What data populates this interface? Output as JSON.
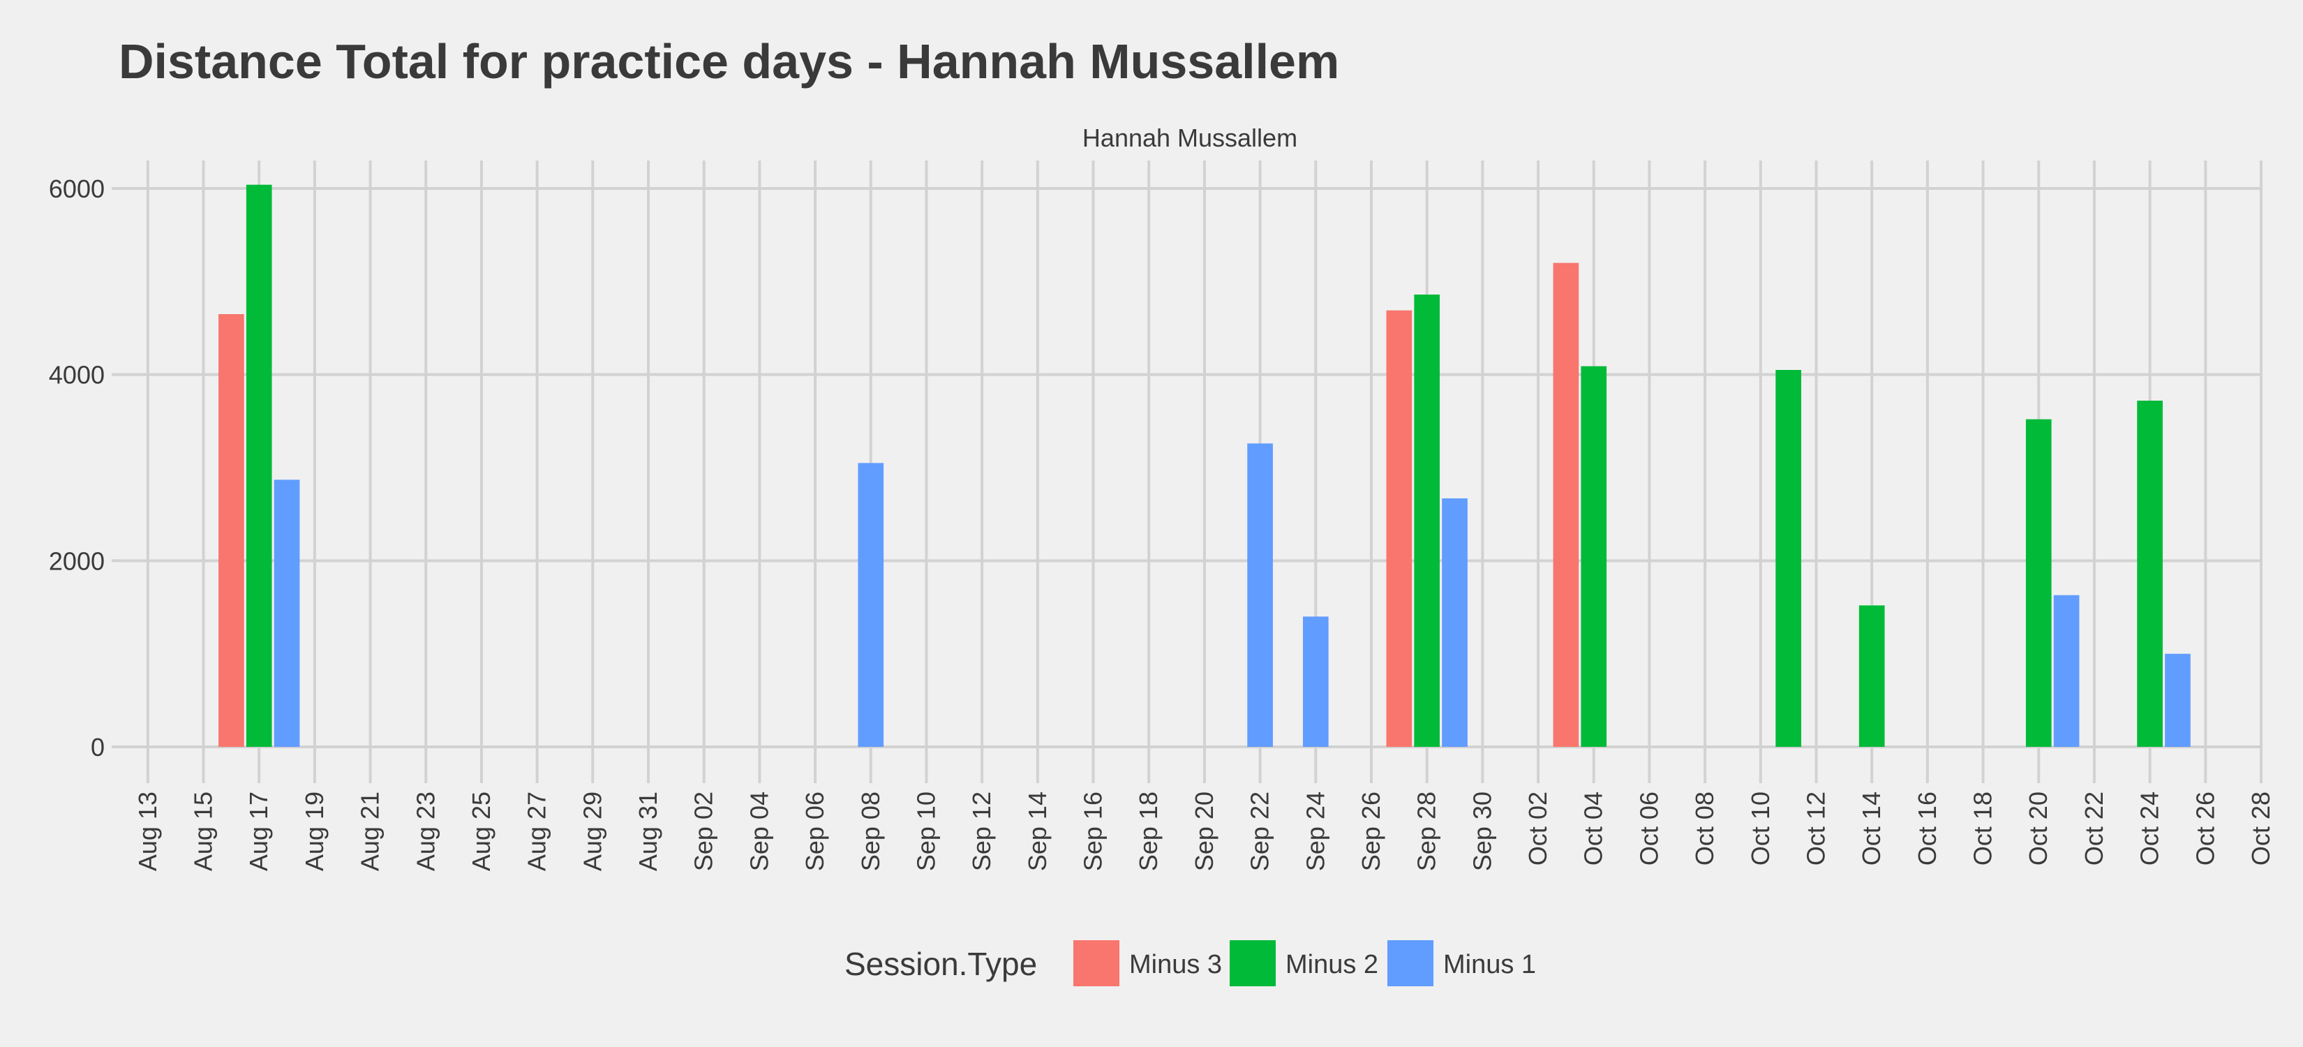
{
  "chart_data": {
    "type": "bar",
    "title": "Distance Total for practice days -  Hannah Mussallem",
    "facet_label": "Hannah Mussallem",
    "xlabel": "",
    "ylabel": "",
    "ylim": [
      -300,
      6300
    ],
    "y_ticks": [
      0,
      2000,
      4000,
      6000
    ],
    "x_range": [
      "2023-08-12",
      "2023-10-28"
    ],
    "x_ticks": [
      "2023-08-13",
      "2023-08-15",
      "2023-08-17",
      "2023-08-19",
      "2023-08-21",
      "2023-08-23",
      "2023-08-25",
      "2023-08-27",
      "2023-08-29",
      "2023-08-31",
      "2023-09-02",
      "2023-09-04",
      "2023-09-06",
      "2023-09-08",
      "2023-09-10",
      "2023-09-12",
      "2023-09-14",
      "2023-09-16",
      "2023-09-18",
      "2023-09-20",
      "2023-09-22",
      "2023-09-24",
      "2023-09-26",
      "2023-09-28",
      "2023-09-30",
      "2023-10-02",
      "2023-10-04",
      "2023-10-06",
      "2023-10-08",
      "2023-10-10",
      "2023-10-12",
      "2023-10-14",
      "2023-10-16",
      "2023-10-18",
      "2023-10-20",
      "2023-10-22",
      "2023-10-24",
      "2023-10-26",
      "2023-10-28"
    ],
    "x_tick_labels": [
      "Aug 13",
      "Aug 15",
      "Aug 17",
      "Aug 19",
      "Aug 21",
      "Aug 23",
      "Aug 25",
      "Aug 27",
      "Aug 29",
      "Aug 31",
      "Sep 02",
      "Sep 04",
      "Sep 06",
      "Sep 08",
      "Sep 10",
      "Sep 12",
      "Sep 14",
      "Sep 16",
      "Sep 18",
      "Sep 20",
      "Sep 22",
      "Sep 24",
      "Sep 26",
      "Sep 28",
      "Sep 30",
      "Oct 02",
      "Oct 04",
      "Oct 06",
      "Oct 08",
      "Oct 10",
      "Oct 12",
      "Oct 14",
      "Oct 16",
      "Oct 18",
      "Oct 20",
      "Oct 22",
      "Oct 24",
      "Oct 26",
      "Oct 28"
    ],
    "grid": true,
    "legend": {
      "title": "Session.Type",
      "position": "bottom"
    },
    "series": [
      {
        "name": "Minus 3",
        "color": "#F8766D",
        "points": [
          {
            "x": "2023-08-16",
            "y": 4650
          },
          {
            "x": "2023-09-27",
            "y": 4690
          },
          {
            "x": "2023-10-03",
            "y": 5200
          }
        ]
      },
      {
        "name": "Minus 2",
        "color": "#00BA38",
        "points": [
          {
            "x": "2023-08-17",
            "y": 6040
          },
          {
            "x": "2023-09-28",
            "y": 4860
          },
          {
            "x": "2023-10-04",
            "y": 4090
          },
          {
            "x": "2023-10-11",
            "y": 4050
          },
          {
            "x": "2023-10-14",
            "y": 1520
          },
          {
            "x": "2023-10-20",
            "y": 3520
          },
          {
            "x": "2023-10-24",
            "y": 3720
          }
        ]
      },
      {
        "name": "Minus 1",
        "color": "#619CFF",
        "points": [
          {
            "x": "2023-08-18",
            "y": 2870
          },
          {
            "x": "2023-09-08",
            "y": 3050
          },
          {
            "x": "2023-09-22",
            "y": 3260
          },
          {
            "x": "2023-09-24",
            "y": 1400
          },
          {
            "x": "2023-09-29",
            "y": 2670
          },
          {
            "x": "2023-10-21",
            "y": 1630
          },
          {
            "x": "2023-10-25",
            "y": 1000
          }
        ]
      }
    ]
  }
}
